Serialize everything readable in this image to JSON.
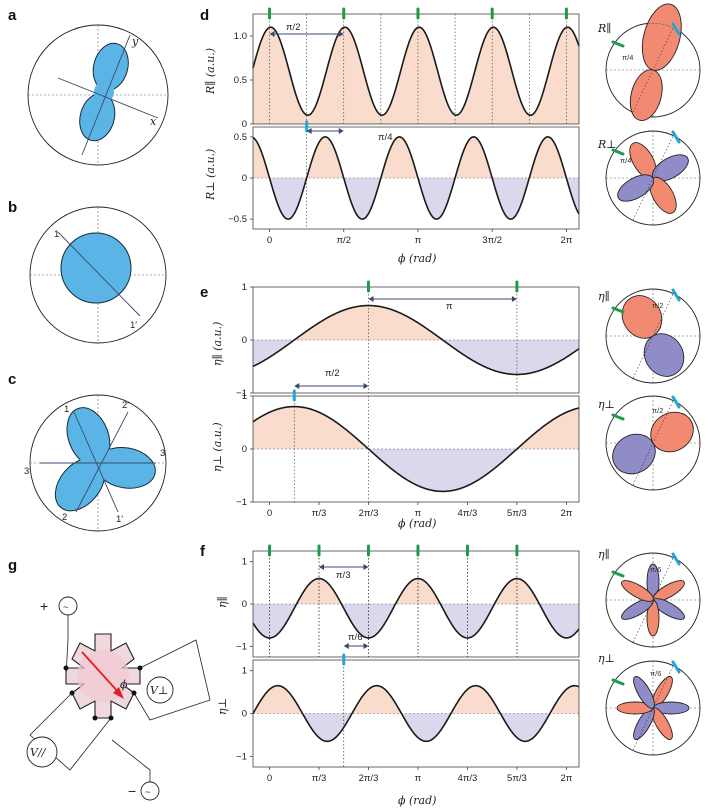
{
  "panels": {
    "a": {
      "letter": "a",
      "axis_x": "x",
      "axis_y": "y"
    },
    "b": {
      "letter": "b",
      "label_1": "1",
      "label_1p": "1′"
    },
    "c": {
      "letter": "c",
      "labels": [
        "1",
        "2′",
        "3",
        "3′",
        "2",
        "1′"
      ]
    },
    "d": {
      "letter": "d",
      "top_ylabel": "R∥ (a.u.)",
      "bottom_ylabel": "R⊥ (a.u.)",
      "top_annotation": "π/2",
      "bottom_annotation": "π/4",
      "xlabel": "ϕ (rad)",
      "polar_top_label": "R∥",
      "polar_top_angle": "π/4",
      "polar_bottom_label": "R⊥",
      "polar_bottom_angle": "π/4"
    },
    "e": {
      "letter": "e",
      "top_ylabel": "η∥ (a.u.)",
      "bottom_ylabel": "η⊥ (a.u.)",
      "top_annotation": "π",
      "bottom_annotation": "π/2",
      "xlabel": "ϕ (rad)",
      "polar_top_label": "η∥",
      "polar_top_angle": "π/2",
      "polar_bottom_label": "η⊥",
      "polar_bottom_angle": "π/2"
    },
    "f": {
      "letter": "f",
      "top_ylabel": "η∥",
      "bottom_ylabel": "η⊥",
      "top_annotation": "π/3",
      "bottom_annotation": "π/6",
      "xlabel": "ϕ (rad)",
      "polar_top_label": "η∥",
      "polar_top_angle": "π/6",
      "polar_bottom_label": "η⊥",
      "polar_bottom_angle": "π/6"
    },
    "g": {
      "letter": "g",
      "plus": "+",
      "minus": "−",
      "source": "~",
      "v_perp": "V⊥",
      "v_par": "V//",
      "phi": "ϕ"
    }
  },
  "chart_data": [
    {
      "type": "line",
      "panel": "d-top",
      "title": "",
      "xlabel": "ϕ (rad)",
      "ylabel": "R∥ (a.u.)",
      "model": "R = 0.6 + 0.5·cos(4ϕ − 0.1)",
      "xlim": [
        -0.35,
        6.55
      ],
      "ylim": [
        0,
        1.25
      ],
      "yticks": [
        0,
        0.5,
        1.0
      ],
      "ytick_labels": [
        "0",
        "0.5",
        "1.0"
      ],
      "series": [
        {
          "name": "R∥",
          "x": [
            0,
            0.785,
            1.571,
            2.356,
            3.142,
            3.927,
            4.712,
            5.498,
            6.283
          ],
          "values": [
            1.1,
            0.1,
            1.1,
            0.1,
            1.1,
            0.1,
            1.1,
            0.1,
            1.1
          ]
        }
      ]
    },
    {
      "type": "line",
      "panel": "d-bottom",
      "xlabel": "ϕ (rad)",
      "ylabel": "R⊥ (a.u.)",
      "model": "R = −0.5·sin(4ϕ)",
      "xlim": [
        -0.35,
        6.55
      ],
      "ylim": [
        -0.62,
        0.62
      ],
      "yticks": [
        -0.5,
        0,
        0.5
      ],
      "ytick_labels": [
        "−0.5",
        "0",
        "0.5"
      ],
      "xticks": [
        0,
        1.5708,
        3.1416,
        4.7124,
        6.2832
      ],
      "xtick_labels": [
        "0",
        "π/2",
        "π",
        "3π/2",
        "2π"
      ],
      "series": [
        {
          "name": "R⊥",
          "x": [
            0.393,
            1.178,
            1.963,
            2.749,
            3.534,
            4.32,
            5.105,
            5.89
          ],
          "values": [
            -0.5,
            0.5,
            -0.5,
            0.5,
            -0.5,
            0.5,
            -0.5,
            0.5
          ]
        }
      ]
    },
    {
      "type": "line",
      "panel": "e-top",
      "xlabel": "ϕ (rad)",
      "ylabel": "η∥ (a.u.)",
      "model": "η = −0.65·cos(ϕ + π/3)",
      "xlim": [
        -0.35,
        6.55
      ],
      "ylim": [
        -1,
        1
      ],
      "yticks": [
        -1,
        0,
        1
      ],
      "ytick_labels": [
        "−1",
        "0",
        "1"
      ],
      "series": [
        {
          "name": "η∥",
          "x": [
            2.094,
            5.236
          ],
          "values": [
            0.65,
            -0.65
          ]
        }
      ]
    },
    {
      "type": "line",
      "panel": "e-bottom",
      "xlabel": "ϕ (rad)",
      "ylabel": "η⊥ (a.u.)",
      "model": "η = 0.8·cos(ϕ − π/6)",
      "xlim": [
        -0.35,
        6.55
      ],
      "ylim": [
        -1,
        1
      ],
      "yticks": [
        -1,
        0,
        1
      ],
      "ytick_labels": [
        "−1",
        "0",
        "1"
      ],
      "xticks": [
        0,
        1.0472,
        2.0944,
        3.1416,
        4.1888,
        5.236,
        6.2832
      ],
      "xtick_labels": [
        "0",
        "π/3",
        "2π/3",
        "π",
        "4π/3",
        "5π/3",
        "2π"
      ],
      "series": [
        {
          "name": "η⊥",
          "x": [
            0.524,
            3.665
          ],
          "values": [
            0.8,
            -0.8
          ]
        }
      ]
    },
    {
      "type": "line",
      "panel": "f-top",
      "xlabel": "ϕ (rad)",
      "ylabel": "η∥",
      "model": "η = −0.7·cos(3ϕ) − 0.1",
      "xlim": [
        -0.35,
        6.55
      ],
      "ylim": [
        -1.25,
        1.25
      ],
      "yticks": [
        -1,
        0,
        1
      ],
      "ytick_labels": [
        "−1",
        "0",
        "1"
      ],
      "series": [
        {
          "name": "η∥",
          "x": [
            1.047,
            2.094,
            3.142,
            4.189,
            5.236
          ],
          "values": [
            0.6,
            -0.8,
            0.6,
            -0.8,
            0.6
          ]
        }
      ]
    },
    {
      "type": "line",
      "panel": "f-bottom",
      "xlabel": "ϕ (rad)",
      "ylabel": "η⊥",
      "model": "η = 0.65·sin(3ϕ + π/3)",
      "xlim": [
        -0.35,
        6.55
      ],
      "ylim": [
        -1.25,
        1.25
      ],
      "yticks": [
        -1,
        0,
        1
      ],
      "ytick_labels": [
        "−1",
        "0",
        "1"
      ],
      "xticks": [
        0,
        1.0472,
        2.0944,
        3.1416,
        4.1888,
        5.236,
        6.2832
      ],
      "xtick_labels": [
        "0",
        "π/3",
        "2π/3",
        "π",
        "4π/3",
        "5π/3",
        "2π"
      ],
      "series": [
        {
          "name": "η⊥",
          "x": [
            0.175,
            1.222,
            2.269,
            3.316,
            4.363,
            5.41
          ],
          "values": [
            0.65,
            -0.65,
            0.65,
            -0.65,
            0.65,
            -0.65
          ]
        }
      ]
    }
  ],
  "colors": {
    "positive_fill": "#f9dccb",
    "negative_fill": "#dad8ec",
    "curve": "#1a1a1a",
    "marker_green": "#1f9a4a",
    "marker_cyan": "#20a7d8",
    "lobe_blue": "#5ab4e6"
  }
}
